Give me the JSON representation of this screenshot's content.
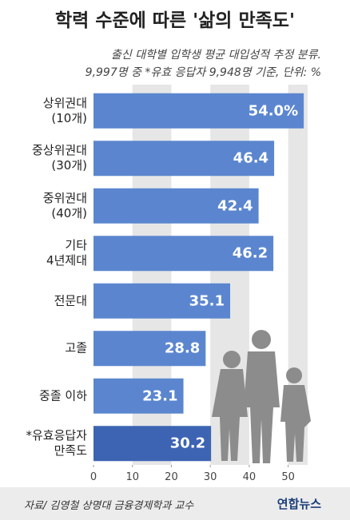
{
  "chart_data": {
    "type": "hbar",
    "title": "학력 수준에 따른 '삶의 만족도'",
    "subtitle": [
      "출신 대학별 입학생 평균 대입성적 추정 분류.",
      "9,997명 중 *유효 응답자 9,948명 기준, 단위: %"
    ],
    "categories": [
      "상위권대\n(10개)",
      "중상위권대\n(30개)",
      "중위권대\n(40개)",
      "기타\n4년제대",
      "전문대",
      "고졸",
      "중졸 이하",
      "*유효응답자\n만족도"
    ],
    "values": [
      54.0,
      46.4,
      42.4,
      46.2,
      35.1,
      28.8,
      23.1,
      30.2
    ],
    "value_labels": [
      "54.0%",
      "46.4",
      "42.4",
      "46.2",
      "35.1",
      "28.8",
      "23.1",
      "30.2"
    ],
    "colors": [
      "#5b86cf",
      "#5b86cf",
      "#5b86cf",
      "#5b86cf",
      "#5b86cf",
      "#5b86cf",
      "#5b86cf",
      "#3d64b3"
    ],
    "xlim": [
      0,
      55
    ],
    "xticks": [
      0,
      10,
      20,
      30,
      40,
      50
    ],
    "grid": true,
    "source": "자료/ 김영철 상명대 금융경제학과 교수",
    "logo": "연합뉴스"
  }
}
